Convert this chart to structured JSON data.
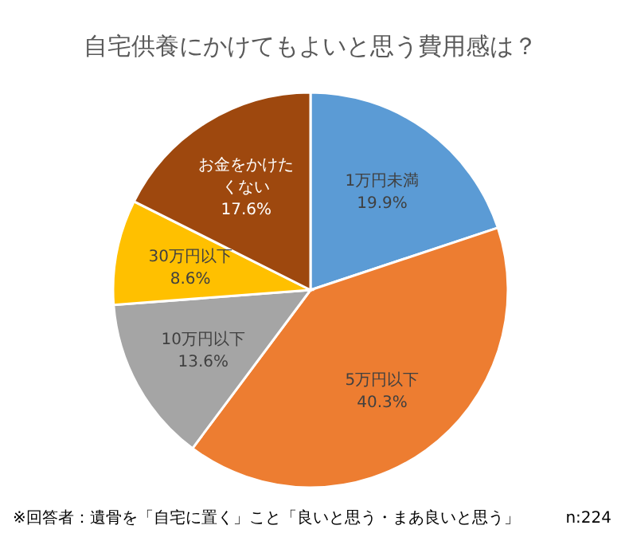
{
  "chart_data": {
    "type": "pie",
    "title": "自宅供養にかけてもよいと思う費用感は？",
    "categories": [
      "1万円未満",
      "5万円以下",
      "10万円以下",
      "30万円以下",
      "お金をかけたくない"
    ],
    "values": [
      19.9,
      40.3,
      13.6,
      8.6,
      17.6
    ],
    "colors": [
      "#5b9bd5",
      "#ed7d31",
      "#a5a5a5",
      "#ffc000",
      "#9e480e"
    ],
    "value_labels": [
      "19.9%",
      "40.3%",
      "13.6%",
      "8.6%",
      "17.6%"
    ],
    "annotations": [
      "※回答者：遺骨を「自宅に置く」こと「良いと思う・まあ良いと思う」",
      "n:224"
    ]
  }
}
